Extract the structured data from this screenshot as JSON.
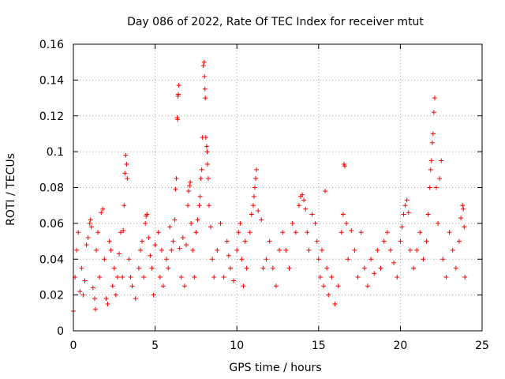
{
  "chart_data": {
    "type": "scatter",
    "title": "Day 086 of 2022, Rate Of TEC Index for receiver mtut",
    "xlabel": "GPS time / hours",
    "ylabel": "ROTI / TECUs",
    "xlim": [
      0,
      25
    ],
    "ylim": [
      0,
      0.16
    ],
    "x_ticks": [
      0,
      5,
      10,
      15,
      20,
      25
    ],
    "y_ticks": [
      0,
      0.02,
      0.04,
      0.06,
      0.08,
      0.1,
      0.12,
      0.14,
      0.16
    ],
    "x_tick_labels": [
      "0",
      "5",
      "10",
      "15",
      "20",
      "25"
    ],
    "y_tick_labels": [
      "0",
      "0.02",
      "0.04",
      "0.06",
      "0.08",
      "0.1",
      "0.12",
      "0.14",
      "0.16"
    ],
    "grid": true,
    "legend": "none",
    "marker": "plus",
    "color": "#ff0000",
    "series": [
      {
        "points": [
          [
            0.0,
            0.011
          ],
          [
            0.1,
            0.03
          ],
          [
            0.2,
            0.045
          ],
          [
            0.3,
            0.055
          ],
          [
            0.4,
            0.022
          ],
          [
            0.5,
            0.035
          ],
          [
            0.6,
            0.02
          ],
          [
            0.7,
            0.028
          ],
          [
            0.8,
            0.048
          ],
          [
            0.9,
            0.052
          ],
          [
            1.0,
            0.06
          ],
          [
            1.05,
            0.062
          ],
          [
            1.1,
            0.058
          ],
          [
            1.2,
            0.024
          ],
          [
            1.3,
            0.018
          ],
          [
            1.35,
            0.012
          ],
          [
            1.4,
            0.045
          ],
          [
            1.5,
            0.055
          ],
          [
            1.6,
            0.03
          ],
          [
            1.7,
            0.066
          ],
          [
            1.8,
            0.068
          ],
          [
            1.9,
            0.04
          ],
          [
            2.0,
            0.018
          ],
          [
            2.1,
            0.015
          ],
          [
            2.2,
            0.05
          ],
          [
            2.3,
            0.045
          ],
          [
            2.4,
            0.025
          ],
          [
            2.5,
            0.035
          ],
          [
            2.6,
            0.02
          ],
          [
            2.7,
            0.03
          ],
          [
            2.8,
            0.043
          ],
          [
            2.9,
            0.055
          ],
          [
            3.0,
            0.03
          ],
          [
            3.05,
            0.056
          ],
          [
            3.1,
            0.07
          ],
          [
            3.15,
            0.088
          ],
          [
            3.2,
            0.098
          ],
          [
            3.25,
            0.093
          ],
          [
            3.3,
            0.085
          ],
          [
            3.4,
            0.04
          ],
          [
            3.5,
            0.03
          ],
          [
            3.6,
            0.025
          ],
          [
            3.8,
            0.018
          ],
          [
            4.0,
            0.035
          ],
          [
            4.1,
            0.045
          ],
          [
            4.2,
            0.05
          ],
          [
            4.3,
            0.03
          ],
          [
            4.4,
            0.06
          ],
          [
            4.45,
            0.064
          ],
          [
            4.5,
            0.065
          ],
          [
            4.6,
            0.052
          ],
          [
            4.7,
            0.042
          ],
          [
            4.8,
            0.035
          ],
          [
            4.9,
            0.02
          ],
          [
            5.0,
            0.048
          ],
          [
            5.2,
            0.055
          ],
          [
            5.3,
            0.03
          ],
          [
            5.4,
            0.045
          ],
          [
            5.5,
            0.025
          ],
          [
            5.7,
            0.04
          ],
          [
            5.8,
            0.035
          ],
          [
            5.9,
            0.058
          ],
          [
            6.0,
            0.045
          ],
          [
            6.1,
            0.05
          ],
          [
            6.2,
            0.062
          ],
          [
            6.25,
            0.079
          ],
          [
            6.3,
            0.085
          ],
          [
            6.35,
            0.119
          ],
          [
            6.38,
            0.118
          ],
          [
            6.4,
            0.131
          ],
          [
            6.42,
            0.132
          ],
          [
            6.45,
            0.137
          ],
          [
            6.5,
            0.046
          ],
          [
            6.6,
            0.03
          ],
          [
            6.7,
            0.052
          ],
          [
            6.8,
            0.025
          ],
          [
            6.9,
            0.048
          ],
          [
            7.0,
            0.07
          ],
          [
            7.05,
            0.078
          ],
          [
            7.1,
            0.081
          ],
          [
            7.15,
            0.083
          ],
          [
            7.2,
            0.06
          ],
          [
            7.3,
            0.045
          ],
          [
            7.4,
            0.03
          ],
          [
            7.5,
            0.055
          ],
          [
            7.6,
            0.062
          ],
          [
            7.7,
            0.07
          ],
          [
            7.75,
            0.075
          ],
          [
            7.8,
            0.085
          ],
          [
            7.85,
            0.09
          ],
          [
            7.9,
            0.108
          ],
          [
            7.95,
            0.148
          ],
          [
            8.0,
            0.15
          ],
          [
            8.02,
            0.142
          ],
          [
            8.05,
            0.135
          ],
          [
            8.07,
            0.13
          ],
          [
            8.1,
            0.108
          ],
          [
            8.15,
            0.103
          ],
          [
            8.18,
            0.1
          ],
          [
            8.2,
            0.093
          ],
          [
            8.25,
            0.085
          ],
          [
            8.3,
            0.07
          ],
          [
            8.4,
            0.058
          ],
          [
            8.5,
            0.04
          ],
          [
            8.6,
            0.03
          ],
          [
            8.8,
            0.045
          ],
          [
            9.0,
            0.06
          ],
          [
            9.2,
            0.03
          ],
          [
            9.4,
            0.05
          ],
          [
            9.5,
            0.042
          ],
          [
            9.6,
            0.035
          ],
          [
            9.8,
            0.028
          ],
          [
            10.0,
            0.045
          ],
          [
            10.1,
            0.055
          ],
          [
            10.2,
            0.06
          ],
          [
            10.3,
            0.04
          ],
          [
            10.4,
            0.025
          ],
          [
            10.5,
            0.05
          ],
          [
            10.6,
            0.035
          ],
          [
            10.8,
            0.055
          ],
          [
            10.9,
            0.065
          ],
          [
            11.0,
            0.07
          ],
          [
            11.05,
            0.075
          ],
          [
            11.1,
            0.08
          ],
          [
            11.15,
            0.085
          ],
          [
            11.2,
            0.09
          ],
          [
            11.3,
            0.067
          ],
          [
            11.5,
            0.062
          ],
          [
            11.6,
            0.035
          ],
          [
            11.8,
            0.04
          ],
          [
            12.0,
            0.05
          ],
          [
            12.2,
            0.035
          ],
          [
            12.4,
            0.025
          ],
          [
            12.6,
            0.045
          ],
          [
            12.8,
            0.055
          ],
          [
            13.0,
            0.045
          ],
          [
            13.2,
            0.035
          ],
          [
            13.4,
            0.06
          ],
          [
            13.6,
            0.055
          ],
          [
            13.8,
            0.07
          ],
          [
            13.9,
            0.075
          ],
          [
            14.0,
            0.076
          ],
          [
            14.1,
            0.073
          ],
          [
            14.2,
            0.068
          ],
          [
            14.3,
            0.055
          ],
          [
            14.4,
            0.045
          ],
          [
            14.6,
            0.065
          ],
          [
            14.8,
            0.06
          ],
          [
            14.9,
            0.05
          ],
          [
            15.0,
            0.04
          ],
          [
            15.1,
            0.03
          ],
          [
            15.2,
            0.045
          ],
          [
            15.3,
            0.025
          ],
          [
            15.4,
            0.078
          ],
          [
            15.5,
            0.035
          ],
          [
            15.6,
            0.02
          ],
          [
            15.8,
            0.03
          ],
          [
            16.0,
            0.015
          ],
          [
            16.2,
            0.025
          ],
          [
            16.4,
            0.055
          ],
          [
            16.5,
            0.065
          ],
          [
            16.55,
            0.093
          ],
          [
            16.6,
            0.092
          ],
          [
            16.7,
            0.06
          ],
          [
            16.8,
            0.04
          ],
          [
            17.0,
            0.056
          ],
          [
            17.2,
            0.045
          ],
          [
            17.4,
            0.03
          ],
          [
            17.6,
            0.055
          ],
          [
            17.8,
            0.035
          ],
          [
            18.0,
            0.025
          ],
          [
            18.2,
            0.04
          ],
          [
            18.4,
            0.032
          ],
          [
            18.6,
            0.045
          ],
          [
            18.8,
            0.035
          ],
          [
            19.0,
            0.05
          ],
          [
            19.2,
            0.055
          ],
          [
            19.4,
            0.045
          ],
          [
            19.6,
            0.038
          ],
          [
            19.8,
            0.03
          ],
          [
            20.0,
            0.05
          ],
          [
            20.1,
            0.058
          ],
          [
            20.2,
            0.065
          ],
          [
            20.3,
            0.07
          ],
          [
            20.4,
            0.073
          ],
          [
            20.5,
            0.066
          ],
          [
            20.6,
            0.045
          ],
          [
            20.8,
            0.035
          ],
          [
            21.0,
            0.045
          ],
          [
            21.2,
            0.055
          ],
          [
            21.4,
            0.04
          ],
          [
            21.6,
            0.05
          ],
          [
            21.7,
            0.065
          ],
          [
            21.8,
            0.08
          ],
          [
            21.85,
            0.09
          ],
          [
            21.9,
            0.095
          ],
          [
            21.95,
            0.105
          ],
          [
            22.0,
            0.11
          ],
          [
            22.05,
            0.122
          ],
          [
            22.1,
            0.13
          ],
          [
            22.2,
            0.08
          ],
          [
            22.3,
            0.06
          ],
          [
            22.4,
            0.085
          ],
          [
            22.5,
            0.095
          ],
          [
            22.6,
            0.04
          ],
          [
            22.8,
            0.03
          ],
          [
            23.0,
            0.055
          ],
          [
            23.2,
            0.045
          ],
          [
            23.4,
            0.035
          ],
          [
            23.6,
            0.05
          ],
          [
            23.7,
            0.063
          ],
          [
            23.8,
            0.07
          ],
          [
            23.85,
            0.068
          ],
          [
            23.9,
            0.058
          ],
          [
            23.95,
            0.03
          ]
        ]
      }
    ]
  }
}
